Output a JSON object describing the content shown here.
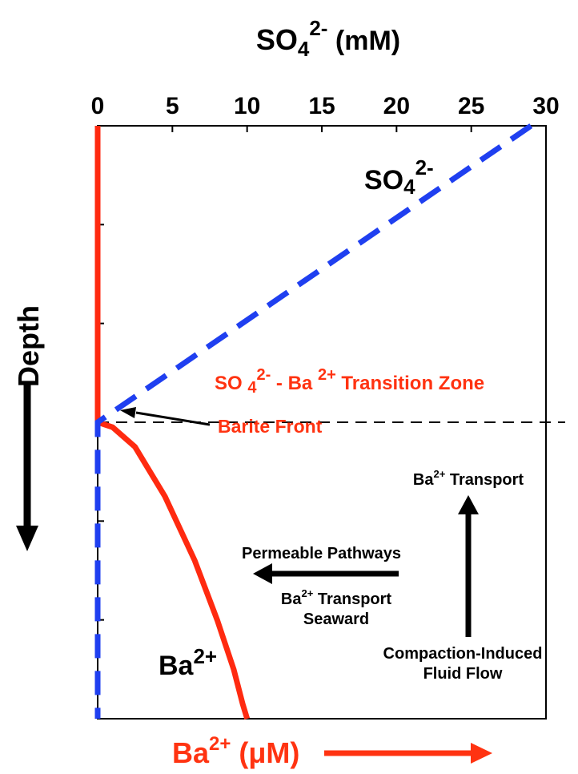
{
  "chart_data": {
    "type": "line",
    "top_axis": {
      "label_main": "SO",
      "label_sub": "4",
      "label_sup": "2-",
      "label_unit": " (mM)",
      "ticks": [
        0,
        5,
        10,
        15,
        20,
        25,
        30
      ],
      "range": [
        0,
        30
      ]
    },
    "bottom_axis": {
      "label_main": "Ba",
      "label_sup": "2+",
      "label_unit": " (μM)",
      "arrow_color": "#ff3311"
    },
    "y_axis": {
      "label": "Depth",
      "direction": "down",
      "ticks": [
        0,
        1,
        2,
        3,
        4,
        5,
        6
      ]
    },
    "series": [
      {
        "name_main": "SO",
        "name_sub": "4",
        "name_sup": "2-",
        "color": "#1f3ff0",
        "style": "dashed",
        "points": [
          [
            29,
            0
          ],
          [
            0,
            3
          ],
          [
            0,
            6
          ]
        ]
      },
      {
        "name_main": "Ba",
        "name_sup": "2+",
        "color": "#ff2a10",
        "style": "solid",
        "points": [
          [
            0,
            0
          ],
          [
            0,
            3
          ],
          [
            1,
            3.05
          ],
          [
            2.5,
            3.25
          ],
          [
            4.5,
            3.75
          ],
          [
            6.5,
            4.4
          ],
          [
            8,
            5.0
          ],
          [
            9.1,
            5.5
          ],
          [
            9.7,
            5.85
          ],
          [
            10,
            6
          ]
        ]
      }
    ],
    "transition_line_depth": 3,
    "annotations": {
      "transition_zone": {
        "p1": "SO ",
        "p1_sub": "4",
        "p1_sup": "2-",
        "p2": " - Ba ",
        "p2_sup": "2+",
        "p3": "  Transition Zone",
        "color": "#ff3311"
      },
      "barite_front": {
        "text": "Barite Front",
        "color": "#ff3311"
      },
      "permeable_pathways": "Permeable Pathways",
      "seaward_line1_main": "Ba",
      "seaward_line1_sup": "2+",
      "seaward_line1_rest": " Transport",
      "seaward_line2": "Seaward",
      "upward_main": "Ba",
      "upward_sup": "2+",
      "upward_rest": " Transport",
      "compaction_line1": "Compaction-Induced",
      "compaction_line2": "Fluid Flow"
    }
  }
}
